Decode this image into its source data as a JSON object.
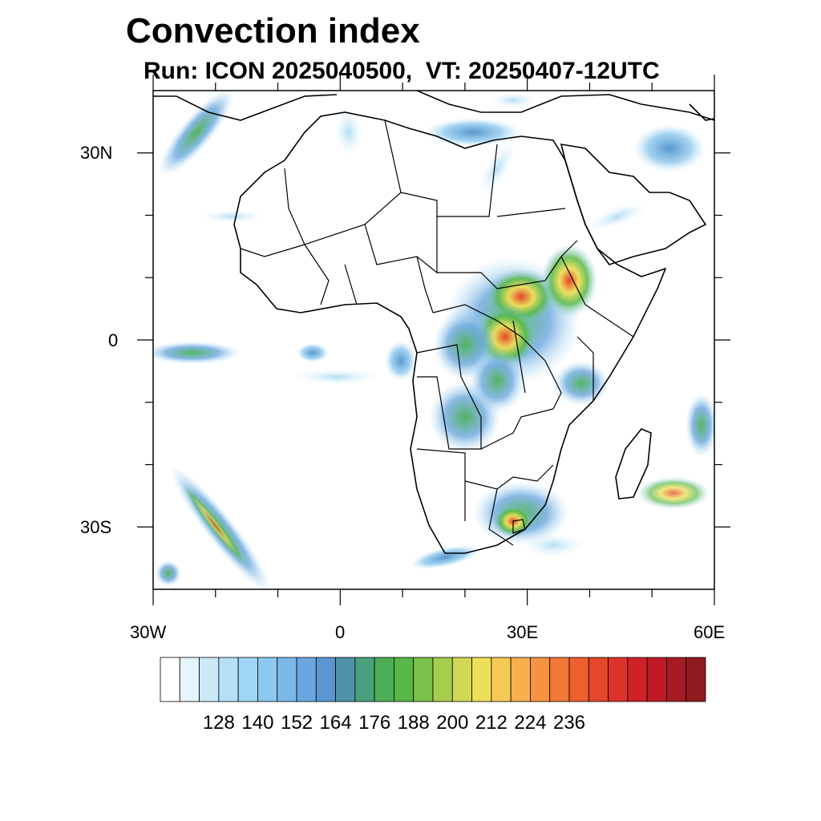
{
  "header": {
    "title": "Convection index",
    "subtitle": "Run: ICON 2025040500,  VT: 20250407-12UTC"
  },
  "map": {
    "lon_range": [
      -30,
      60
    ],
    "lat_range": [
      -40,
      40
    ],
    "lat_ticks": [
      "30N",
      "0",
      "30S"
    ],
    "lon_ticks": [
      "30W",
      "0",
      "30E",
      "60E"
    ]
  },
  "colorbar": {
    "labels": [
      "128",
      "140",
      "152",
      "164",
      "176",
      "188",
      "200",
      "212",
      "224",
      "236"
    ],
    "colors": [
      "#ffffff",
      "#e6f4fb",
      "#cce9f8",
      "#b5dff6",
      "#9fd6f4",
      "#8dc8ee",
      "#7cb8e6",
      "#6aa7de",
      "#5a97d2",
      "#4f93a8",
      "#49a07c",
      "#4caf57",
      "#57b846",
      "#7bc24a",
      "#a7cd4f",
      "#d2d855",
      "#eedf58",
      "#f6c955",
      "#f7b04d",
      "#f69341",
      "#f27836",
      "#ec5f2e",
      "#e4472a",
      "#dc3229",
      "#cf2228",
      "#bd1a26",
      "#a81a23",
      "#8f1a1f"
    ]
  }
}
